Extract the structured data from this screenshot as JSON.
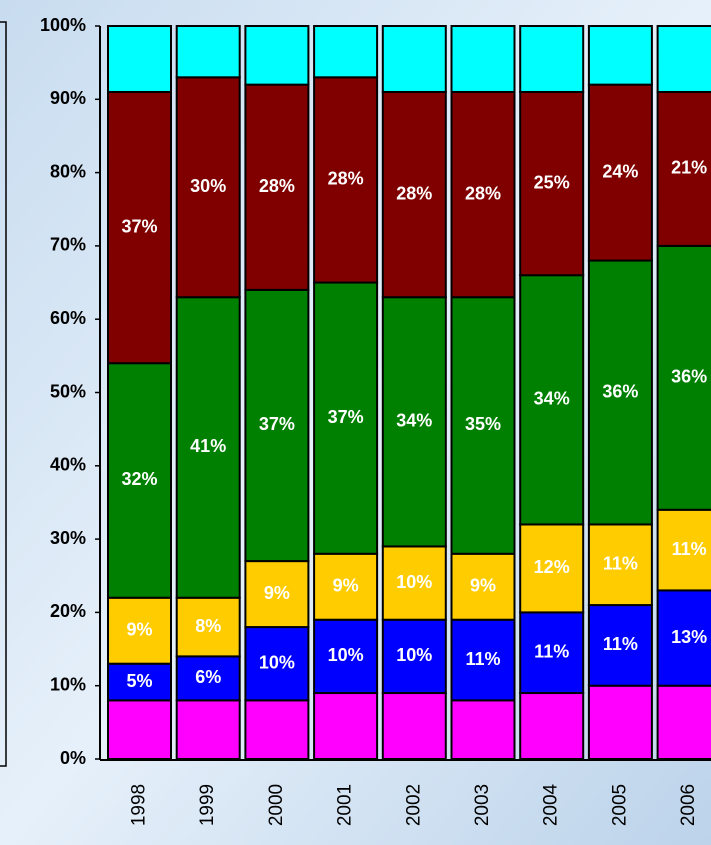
{
  "chart_data": {
    "type": "stacked_bar",
    "categories": [
      "1998",
      "1999",
      "2000",
      "2001",
      "2002",
      "2003",
      "2004",
      "2005",
      "2006"
    ],
    "series": [
      {
        "color": "#ff00ff",
        "values": [
          8,
          8,
          8,
          9,
          9,
          8,
          9,
          10,
          10
        ]
      },
      {
        "color": "#0000ff",
        "values": [
          5,
          6,
          10,
          10,
          10,
          11,
          11,
          11,
          13
        ],
        "value_labels": [
          "5%",
          "6%",
          "10%",
          "10%",
          "10%",
          "11%",
          "11%",
          "11%",
          "13%"
        ]
      },
      {
        "color": "#ffcc00",
        "values": [
          9,
          8,
          9,
          9,
          10,
          9,
          12,
          11,
          11
        ],
        "value_labels": [
          "9%",
          "8%",
          "9%",
          "9%",
          "10%",
          "9%",
          "12%",
          "11%",
          "11%"
        ]
      },
      {
        "color": "#008000",
        "values": [
          32,
          41,
          37,
          37,
          34,
          35,
          34,
          36,
          36
        ],
        "value_labels": [
          "32%",
          "41%",
          "37%",
          "37%",
          "34%",
          "35%",
          "34%",
          "36%",
          "36%"
        ]
      },
      {
        "color": "#800000",
        "values": [
          37,
          30,
          28,
          28,
          28,
          28,
          25,
          24,
          21
        ],
        "value_labels": [
          "37%",
          "30%",
          "28%",
          "28%",
          "28%",
          "28%",
          "25%",
          "24%",
          "21%"
        ]
      },
      {
        "color": "#00ffff",
        "values": [
          9,
          7,
          8,
          7,
          9,
          9,
          9,
          8,
          9
        ]
      }
    ],
    "ylim": [
      0,
      100
    ],
    "yticks": [
      {
        "value": 0,
        "label": "0%"
      },
      {
        "value": 10,
        "label": "10%"
      },
      {
        "value": 20,
        "label": "20%"
      },
      {
        "value": 30,
        "label": "30%"
      },
      {
        "value": 40,
        "label": "40%"
      },
      {
        "value": 50,
        "label": "50%"
      },
      {
        "value": 60,
        "label": "60%"
      },
      {
        "value": 70,
        "label": "70%"
      },
      {
        "value": 80,
        "label": "80%"
      },
      {
        "value": 90,
        "label": "90%"
      },
      {
        "value": 100,
        "label": "100%"
      }
    ]
  }
}
